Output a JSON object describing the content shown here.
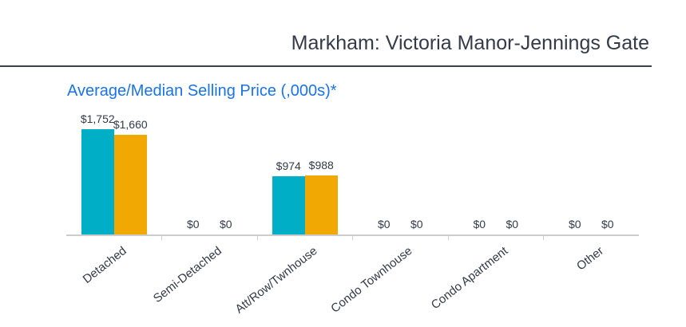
{
  "header": {
    "title": "Markham: Victoria Manor-Jennings Gate"
  },
  "chart": {
    "title": "Average/Median Selling Price (,000s)*"
  },
  "chart_data": {
    "type": "bar",
    "title": "Average/Median Selling Price (,000s)*",
    "categories": [
      "Detached",
      "Semi-Detached",
      "Att/Row/Twnhouse",
      "Condo Townhouse",
      "Condo Apartment",
      "Other"
    ],
    "series": [
      {
        "name": "Average",
        "color": "#00aec6",
        "values": [
          1752,
          0,
          974,
          0,
          0,
          0
        ],
        "labels": [
          "$1,752",
          "$0",
          "$974",
          "$0",
          "$0",
          "$0"
        ]
      },
      {
        "name": "Median",
        "color": "#f1a802",
        "values": [
          1660,
          0,
          988,
          0,
          0,
          0
        ],
        "labels": [
          "$1,660",
          "$0",
          "$988",
          "$0",
          "$0",
          "$0"
        ]
      }
    ],
    "xlabel": "",
    "ylabel": "",
    "ylim": [
      0,
      1752
    ],
    "grid": false,
    "legend": "none",
    "value_label_prefix": "$"
  },
  "colors": {
    "bar_teal": "#00aec6",
    "bar_orange": "#f1a802",
    "title_blue": "#1a73e8",
    "text_dark": "#333b49",
    "rule_dark": "#3a4150",
    "axis_gray": "#cccccc"
  }
}
